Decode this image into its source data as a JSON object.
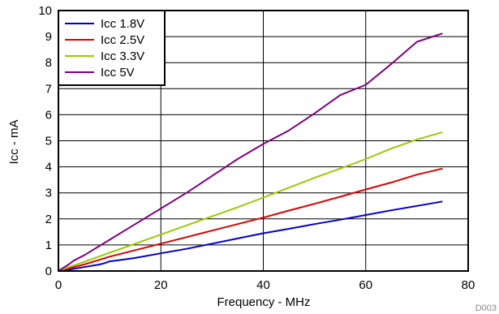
{
  "chart_data": {
    "type": "line",
    "title": "",
    "xlabel": "Frequency - MHz",
    "ylabel": "Icc - mA",
    "xlim": [
      0,
      80
    ],
    "ylim": [
      0,
      10
    ],
    "x_ticks": [
      0,
      20,
      40,
      60,
      80
    ],
    "y_ticks": [
      0,
      1,
      2,
      3,
      4,
      5,
      6,
      7,
      8,
      9,
      10
    ],
    "grid": true,
    "legend_position": "top-left",
    "footer_code": "D003",
    "series": [
      {
        "name": "Icc 1.8V",
        "color": "#0000cc",
        "x": [
          0,
          2,
          5,
          8,
          9,
          10,
          12,
          15,
          20,
          25,
          30,
          35,
          40,
          45,
          50,
          55,
          60,
          65,
          70,
          75
        ],
        "y": [
          0,
          0.05,
          0.15,
          0.25,
          0.3,
          0.37,
          0.42,
          0.5,
          0.68,
          0.85,
          1.05,
          1.25,
          1.45,
          1.62,
          1.8,
          1.97,
          2.15,
          2.33,
          2.5,
          2.67
        ]
      },
      {
        "name": "Icc 2.5V",
        "color": "#dd0000",
        "x": [
          0,
          2,
          5,
          10,
          15,
          20,
          25,
          30,
          35,
          40,
          45,
          50,
          55,
          60,
          65,
          70,
          75
        ],
        "y": [
          0,
          0.1,
          0.25,
          0.55,
          0.8,
          1.05,
          1.3,
          1.55,
          1.8,
          2.05,
          2.32,
          2.58,
          2.85,
          3.13,
          3.4,
          3.7,
          3.93
        ]
      },
      {
        "name": "Icc 3.3V",
        "color": "#99cc00",
        "x": [
          0,
          2,
          5,
          10,
          15,
          20,
          25,
          30,
          35,
          40,
          45,
          50,
          55,
          60,
          65,
          70,
          75
        ],
        "y": [
          0,
          0.15,
          0.35,
          0.7,
          1.05,
          1.4,
          1.75,
          2.1,
          2.45,
          2.82,
          3.2,
          3.58,
          3.93,
          4.3,
          4.7,
          5.05,
          5.33
        ]
      },
      {
        "name": "Icc 5V",
        "color": "#7f007f",
        "x": [
          0,
          2,
          3,
          5,
          10,
          15,
          20,
          25,
          30,
          35,
          40,
          45,
          50,
          55,
          60,
          65,
          70,
          75
        ],
        "y": [
          0,
          0.25,
          0.4,
          0.6,
          1.2,
          1.8,
          2.4,
          3.0,
          3.65,
          4.3,
          4.88,
          5.4,
          6.05,
          6.75,
          7.15,
          7.95,
          8.8,
          9.12
        ]
      }
    ]
  }
}
